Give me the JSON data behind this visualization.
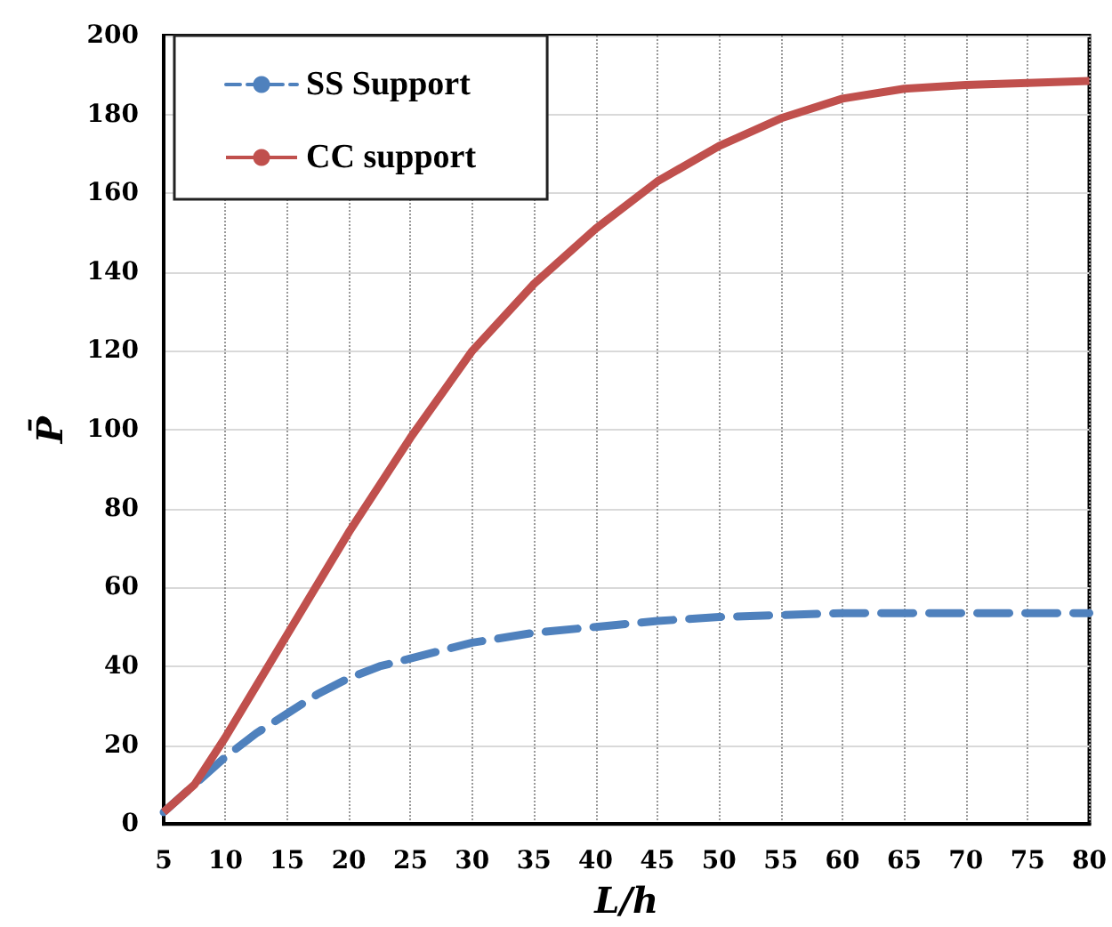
{
  "chart_data": {
    "type": "line",
    "xlabel": "L/h",
    "ylabel": "P̄",
    "x": [
      5,
      7.5,
      10,
      12.5,
      15,
      17.5,
      20,
      22.5,
      25,
      30,
      35,
      40,
      45,
      50,
      55,
      60,
      65,
      70,
      75,
      80
    ],
    "series": [
      {
        "name": "SS Support",
        "color": "#4f81bd",
        "line_style": "dashed",
        "values": [
          3,
          10,
          17,
          23,
          28,
          33,
          37,
          40,
          42,
          46,
          48.5,
          50,
          51.5,
          52.5,
          53,
          53.5,
          53.5,
          53.5,
          53.5,
          53.5
        ]
      },
      {
        "name": "CC support",
        "color": "#c0504d",
        "line_style": "solid",
        "values": [
          3,
          10,
          22,
          35,
          48,
          61,
          74,
          86,
          98,
          120,
          137,
          151,
          163,
          172,
          179,
          184,
          186.5,
          187.5,
          188,
          188.5
        ]
      }
    ],
    "xlim": [
      5,
      80
    ],
    "xticks": [
      5,
      10,
      15,
      20,
      25,
      30,
      35,
      40,
      45,
      50,
      55,
      60,
      65,
      70,
      75,
      80
    ],
    "ylim": [
      0,
      200
    ],
    "yticks": [
      0,
      20,
      40,
      60,
      80,
      100,
      120,
      140,
      160,
      180,
      200
    ],
    "grid": true,
    "legend": "top left",
    "marker": "none"
  }
}
